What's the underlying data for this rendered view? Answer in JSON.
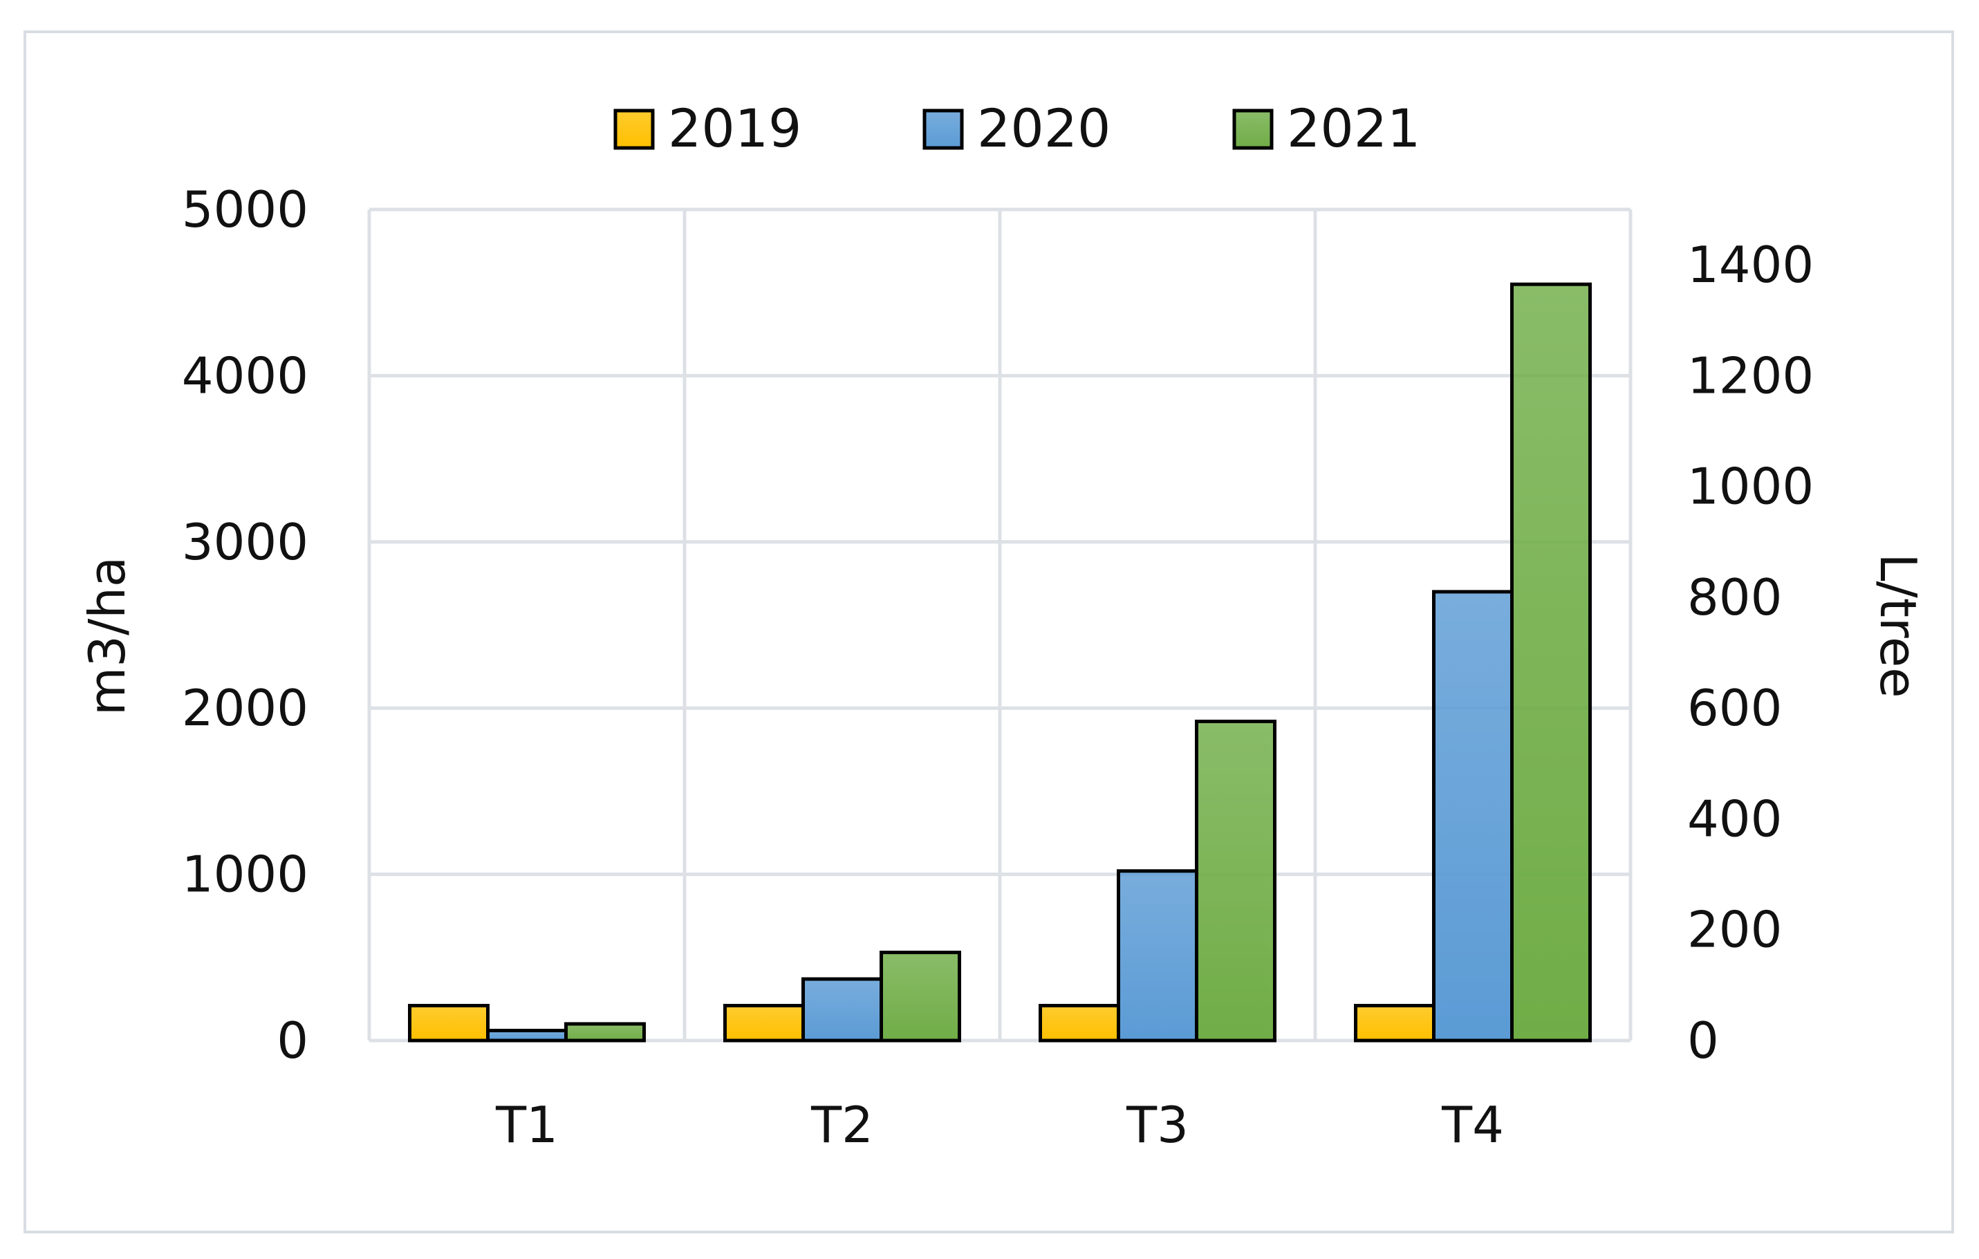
{
  "chart_data": {
    "type": "bar",
    "categories": [
      "T1",
      "T2",
      "T3",
      "T4"
    ],
    "series": [
      {
        "name": "2019",
        "values": [
          210,
          210,
          210,
          210
        ],
        "color": "#ffc000"
      },
      {
        "name": "2020",
        "values": [
          60,
          370,
          1020,
          2700
        ],
        "color": "#5b9bd5"
      },
      {
        "name": "2021",
        "values": [
          100,
          530,
          1920,
          4550
        ],
        "color": "#70ad47"
      }
    ],
    "title": "",
    "xlabel": "",
    "ylabel": "m3/ha",
    "ylim": [
      0,
      5000
    ],
    "yticks": [
      "0",
      "1000",
      "2000",
      "3000",
      "4000",
      "5000"
    ],
    "y2label": "L/tree",
    "y2lim": [
      0,
      1500
    ],
    "y2ticks": [
      "0",
      "200",
      "400",
      "600",
      "800",
      "1000",
      "1200",
      "1400"
    ],
    "grid": true,
    "legend_position": "top-center"
  }
}
